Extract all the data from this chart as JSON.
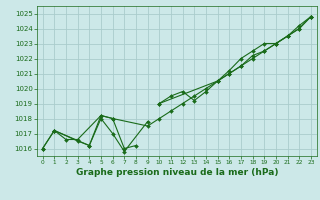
{
  "title": "Graphe pression niveau de la mer (hPa)",
  "bg_color": "#cce8e8",
  "grid_color": "#aacccc",
  "line_color": "#1a6b1a",
  "ylim": [
    1015.5,
    1025.5
  ],
  "xlim": [
    -0.5,
    23.5
  ],
  "yticks": [
    1016,
    1017,
    1018,
    1019,
    1020,
    1021,
    1022,
    1023,
    1024,
    1025
  ],
  "xticks": [
    0,
    1,
    2,
    3,
    4,
    5,
    6,
    7,
    8,
    9,
    10,
    11,
    12,
    13,
    14,
    15,
    16,
    17,
    18,
    19,
    20,
    21,
    22,
    23
  ],
  "series": [
    {
      "x": [
        0,
        1,
        3,
        4,
        5,
        6,
        7,
        9
      ],
      "y": [
        1016.0,
        1017.2,
        1016.5,
        1016.2,
        1018.0,
        1017.0,
        1015.8,
        1017.8
      ]
    },
    {
      "x": [
        0,
        1,
        4,
        5,
        6,
        7,
        8
      ],
      "y": [
        1016.0,
        1017.2,
        1016.2,
        1018.2,
        1018.0,
        1016.0,
        1016.2
      ]
    },
    {
      "x": [
        1,
        2,
        3,
        5,
        6,
        9,
        10,
        11,
        12,
        13,
        14,
        15,
        16,
        17,
        18,
        19,
        20,
        21,
        22,
        23
      ],
      "y": [
        1017.2,
        1016.6,
        1016.6,
        1018.2,
        1018.0,
        1017.5,
        1018.0,
        1018.5,
        1019.0,
        1019.5,
        1020.0,
        1020.5,
        1021.0,
        1021.5,
        1022.0,
        1022.5,
        1023.0,
        1023.5,
        1024.0,
        1024.8
      ]
    },
    {
      "x": [
        10,
        11,
        12,
        13,
        14,
        15,
        16,
        17,
        18,
        19,
        20,
        21,
        22,
        23
      ],
      "y": [
        1019.0,
        1019.5,
        1019.8,
        1019.2,
        1019.8,
        1020.5,
        1021.0,
        1021.5,
        1022.2,
        1022.5,
        1023.0,
        1023.5,
        1024.2,
        1024.8
      ]
    },
    {
      "x": [
        10,
        15,
        16,
        17,
        18,
        19,
        20,
        21,
        22,
        23
      ],
      "y": [
        1019.0,
        1020.5,
        1021.2,
        1022.0,
        1022.5,
        1023.0,
        1023.0,
        1023.5,
        1024.0,
        1024.8
      ]
    }
  ],
  "linewidth": 0.8,
  "markersize": 2.0,
  "tick_fontsize": 5,
  "xlabel_fontsize": 6.5
}
